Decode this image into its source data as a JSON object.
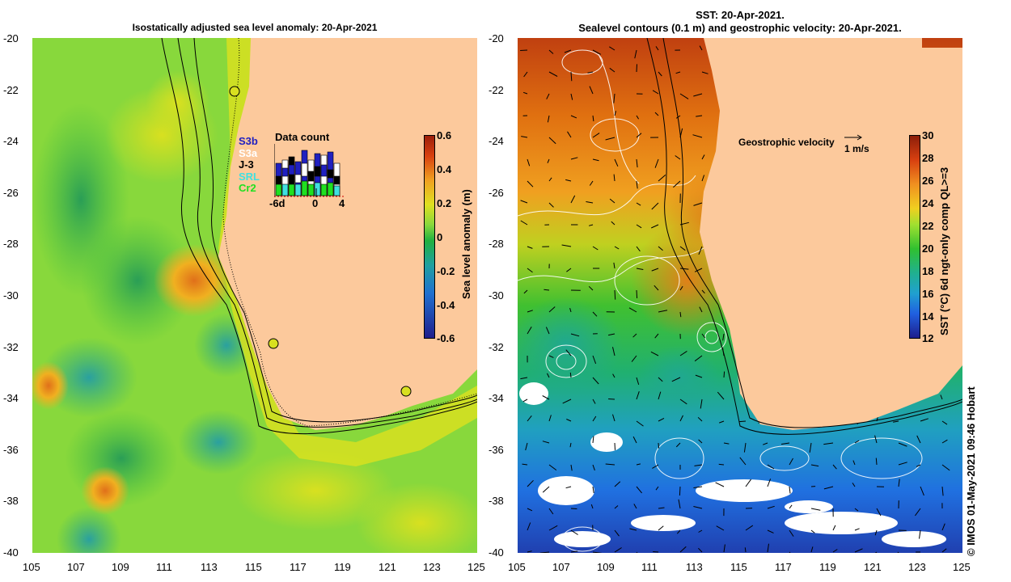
{
  "left": {
    "title": "Isostatically adjusted sea level anomaly: 20-Apr-2021",
    "y_ticks": [
      "-20",
      "-22",
      "-24",
      "-26",
      "-28",
      "-30",
      "-32",
      "-34",
      "-36",
      "-38",
      "-40"
    ],
    "x_ticks": [
      "105",
      "107",
      "109",
      "111",
      "113",
      "115",
      "117",
      "119",
      "121",
      "123",
      "125"
    ],
    "colorbar": {
      "label": "Sea level anomaly (m)",
      "ticks": [
        "0.6",
        "0.4",
        "0.2",
        "0",
        "-0.2",
        "-0.4",
        "-0.6"
      ]
    },
    "inset": {
      "title": "Data count",
      "satellites": [
        {
          "name": "S3b",
          "color": "#2020c0"
        },
        {
          "name": "S3a",
          "color": "#ffffff"
        },
        {
          "name": "J-3",
          "color": "#000000"
        },
        {
          "name": "SRL",
          "color": "#40e0e0"
        },
        {
          "name": "Cr2",
          "color": "#20e020"
        }
      ],
      "overlap_label": "S3b",
      "axis": [
        "-6d",
        "0",
        "4"
      ]
    }
  },
  "right": {
    "title_line1": "SST: 20-Apr-2021.",
    "title_line2": "Sealevel contours (0.1 m) and geostrophic velocity: 20-Apr-2021.",
    "y_ticks": [
      "-20",
      "-22",
      "-24",
      "-26",
      "-28",
      "-30",
      "-32",
      "-34",
      "-36",
      "-38",
      "-40"
    ],
    "x_ticks": [
      "105",
      "107",
      "109",
      "111",
      "113",
      "115",
      "117",
      "119",
      "121",
      "123",
      "125"
    ],
    "velocity_label": "Geostrophic velocity",
    "velocity_scale": "1 m/s",
    "colorbar": {
      "label": "SST (°C) 6d ngt-only comp QL>=3",
      "ticks": [
        "30",
        "28",
        "26",
        "24",
        "22",
        "20",
        "18",
        "16",
        "14",
        "12"
      ]
    }
  },
  "credit": "© IMOS 01-May-2021 09:46 Hobart",
  "colors": {
    "land": "#fcc99c",
    "sla_low": "#1e1e8c",
    "sla_mid": "#22bb22",
    "sla_high": "#9c1e0a",
    "sst_low": "#1e1e8c",
    "sst_high": "#8c1e0a"
  }
}
